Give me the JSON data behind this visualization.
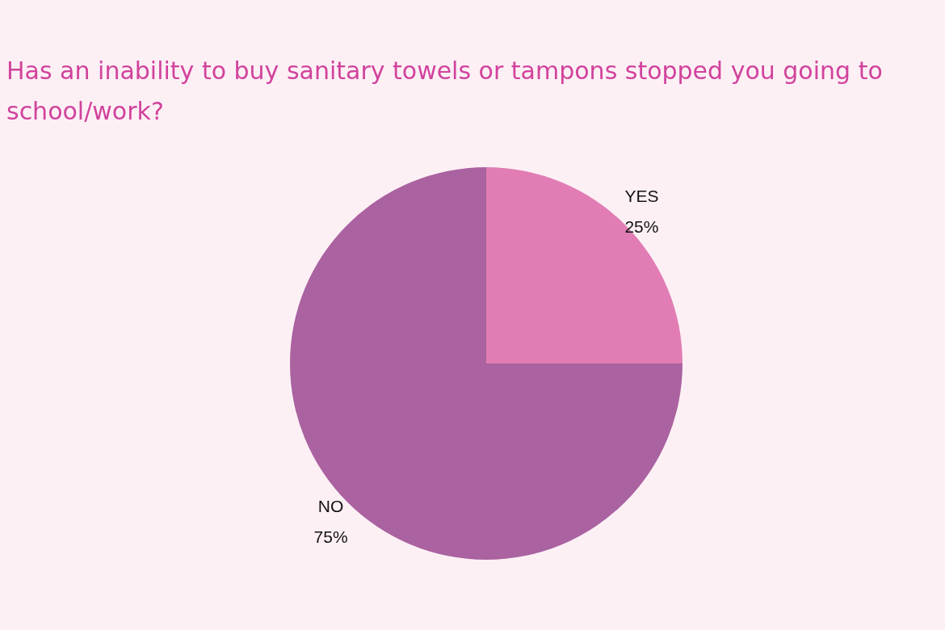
{
  "chart_data": {
    "type": "pie",
    "title": "Has an inability to buy sanitary towels or tampons stopped you going to school/work?",
    "categories": [
      "YES",
      "NO"
    ],
    "values": [
      25,
      75
    ],
    "colors": [
      "#e17db4",
      "#aa62a0"
    ],
    "value_labels": [
      "25%",
      "75%"
    ]
  }
}
